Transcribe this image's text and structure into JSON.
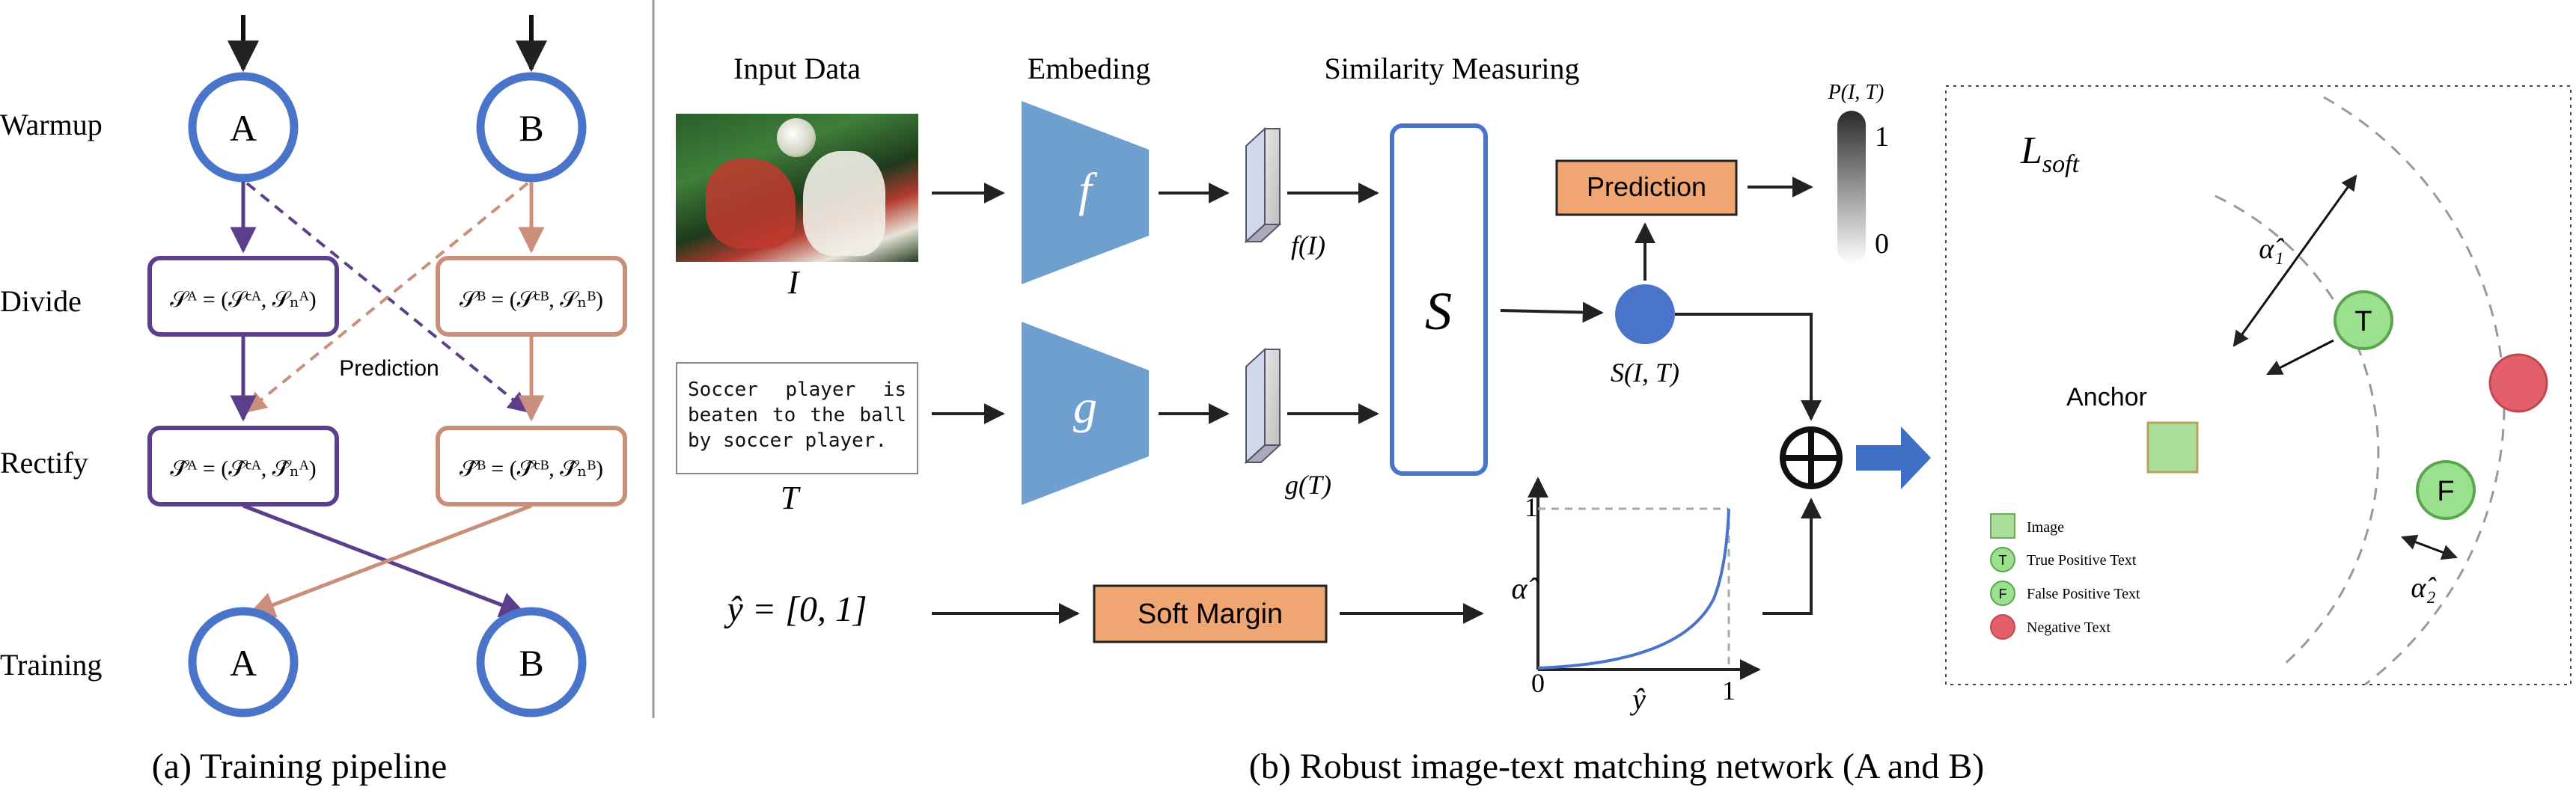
{
  "pipeline": {
    "stages": [
      "Warmup",
      "Divide",
      "Rectify",
      "Training"
    ],
    "node_a": "A",
    "node_b": "B",
    "divide_a": "𝒮ᴬ = (𝒮ᶜᴬ, 𝒮ₙᴬ)",
    "divide_b": "𝒮ᴮ = (𝒮ᶜᴮ, 𝒮ₙᴮ)",
    "rectify_a": "𝒮̂ᴬ = (𝒮̂ᶜᴬ, 𝒮̂ₙᴬ)",
    "rectify_b": "𝒮̂ᴮ = (𝒮̂ᶜᴮ, 𝒮̂ₙᴮ)",
    "prediction_label": "Prediction",
    "caption": "(a) Training pipeline",
    "colors": {
      "node": "#4a74c9",
      "a_box": "#5b3f8c",
      "b_box": "#c98f7a"
    }
  },
  "network": {
    "headers": {
      "input": "Input Data",
      "embedding": "Embeding",
      "similarity": "Similarity Measuring"
    },
    "image_label": "I",
    "text_label": "T",
    "text_sample": "Soccer player is beaten to the ball by soccer player.",
    "encoder_f": "f",
    "encoder_g": "g",
    "feature_f": "f(I)",
    "feature_g": "g(T)",
    "sim_block": "S",
    "sim_output": "S(I, T)",
    "prediction": "Prediction",
    "prob_label": "P(I, T)",
    "scale_top": "1",
    "scale_bottom": "0",
    "y_hat": "ŷ = [0, 1]",
    "soft_margin": "Soft Margin",
    "plot": {
      "ylabel": "α̂",
      "xlabel": "ŷ",
      "x0": "0",
      "x1": "1",
      "y1": "1"
    },
    "caption": "(b) Robust image-text matching network (A and B)",
    "colors": {
      "encoder": "#6f9fcf",
      "orange": "#f0a673",
      "dot": "#4a74c9"
    }
  },
  "loss_panel": {
    "title": "L",
    "title_sub": "soft",
    "anchor_label": "Anchor",
    "alpha1": "α̂₁",
    "alpha2": "α̂₂",
    "true_node": "T",
    "false_node": "F",
    "legend": [
      {
        "symbol": "",
        "label": "Image"
      },
      {
        "symbol": "T",
        "label": "True Positive Text"
      },
      {
        "symbol": "F",
        "label": "False Positive Text"
      },
      {
        "symbol": "",
        "label": "Negative Text"
      }
    ]
  }
}
